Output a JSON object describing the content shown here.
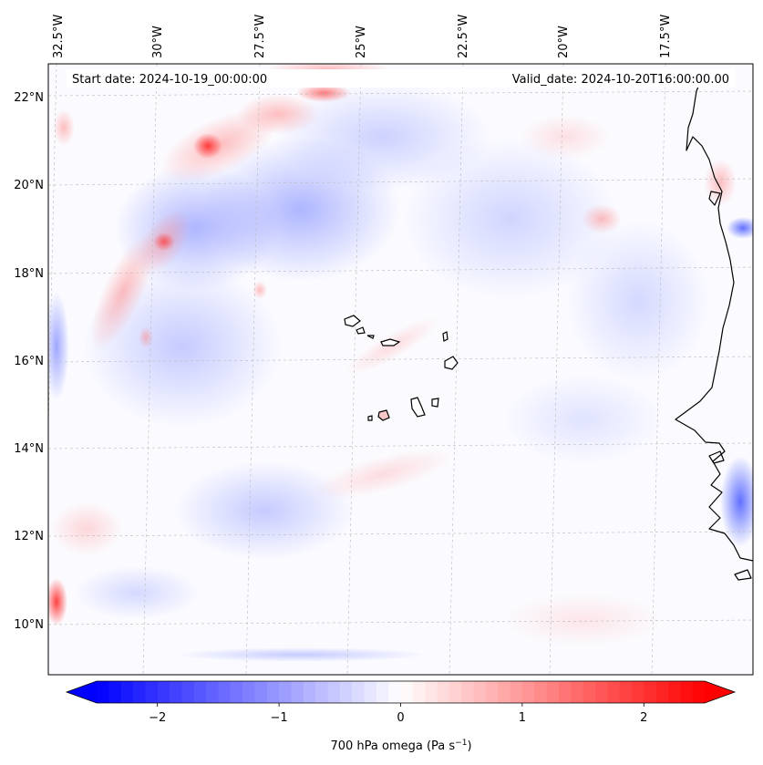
{
  "map": {
    "start_label": "Start date: 2024-10-19_00:00:00",
    "valid_label": "Valid_date: 2024-10-20T16:00:00.00",
    "lon_labels": [
      "32.5°W",
      "30°W",
      "27.5°W",
      "25°W",
      "22.5°W",
      "20°W",
      "17.5°W"
    ],
    "lat_labels": [
      "22°N",
      "20°N",
      "18°N",
      "16°N",
      "14°N",
      "12°N",
      "10°N"
    ]
  },
  "colorbar": {
    "ticks": [
      "−2",
      "−1",
      "0",
      "1",
      "2"
    ],
    "tick_values": [
      -2,
      -1,
      0,
      1,
      2
    ],
    "range": [
      -2.5,
      2.5
    ],
    "label_main": "700 hPa omega (Pa s",
    "label_sup": "−1",
    "label_end": ")",
    "colors": {
      "neg": "#0000ff",
      "mid": "#ffffff",
      "pos": "#ff0000"
    }
  }
}
